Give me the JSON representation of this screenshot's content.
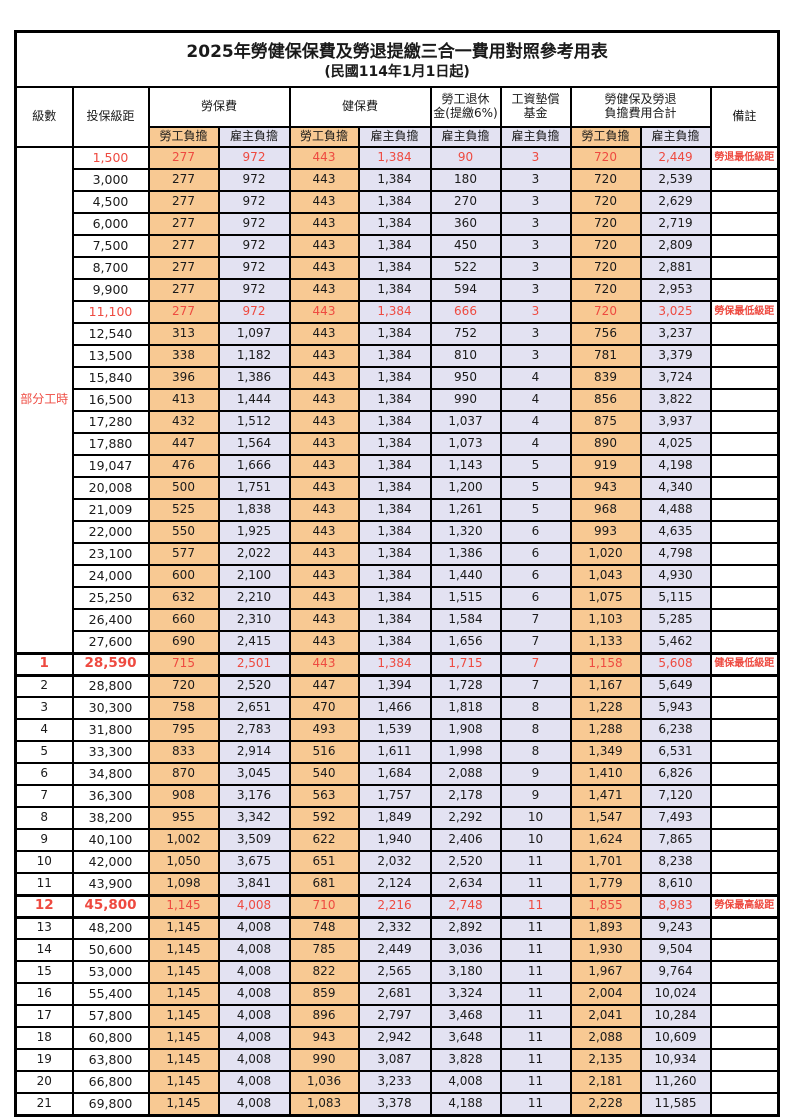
{
  "title": "2025年勞健保保費及勞退提繳三合一費用對照參考用表",
  "subtitle": "(民國114年1月1日起)",
  "colors": {
    "employee_bg": "#F8C993",
    "employer_bg": "#E3E2F2",
    "highlight_red": "#EE4A40",
    "border": "#000000"
  },
  "header": {
    "level": "級數",
    "bracket": "投保級距",
    "labor_insurance": "勞保費",
    "health_insurance": "健保費",
    "pension_line1": "勞工退休",
    "pension_line2": "金(提繳6%)",
    "wage_fund_line1": "工資墊償",
    "wage_fund_line2": "基金",
    "total_line1": "勞健保及勞退",
    "total_line2": "負擔費用合計",
    "remark": "備註",
    "employee": "勞工負擔",
    "employer": "雇主負擔"
  },
  "part_time_label": "部分工時",
  "part_time_rows": 23,
  "rows": [
    {
      "level": "",
      "bracket": "1,500",
      "li_emp": "277",
      "li_er": "972",
      "hi_emp": "443",
      "hi_er": "1,384",
      "pension": "90",
      "fund": "3",
      "tot_emp": "720",
      "tot_er": "2,449",
      "remark": "勞退最低級距",
      "red": true,
      "thick": false
    },
    {
      "level": "",
      "bracket": "3,000",
      "li_emp": "277",
      "li_er": "972",
      "hi_emp": "443",
      "hi_er": "1,384",
      "pension": "180",
      "fund": "3",
      "tot_emp": "720",
      "tot_er": "2,539",
      "remark": "",
      "red": false,
      "thick": false
    },
    {
      "level": "",
      "bracket": "4,500",
      "li_emp": "277",
      "li_er": "972",
      "hi_emp": "443",
      "hi_er": "1,384",
      "pension": "270",
      "fund": "3",
      "tot_emp": "720",
      "tot_er": "2,629",
      "remark": "",
      "red": false,
      "thick": false
    },
    {
      "level": "",
      "bracket": "6,000",
      "li_emp": "277",
      "li_er": "972",
      "hi_emp": "443",
      "hi_er": "1,384",
      "pension": "360",
      "fund": "3",
      "tot_emp": "720",
      "tot_er": "2,719",
      "remark": "",
      "red": false,
      "thick": false
    },
    {
      "level": "",
      "bracket": "7,500",
      "li_emp": "277",
      "li_er": "972",
      "hi_emp": "443",
      "hi_er": "1,384",
      "pension": "450",
      "fund": "3",
      "tot_emp": "720",
      "tot_er": "2,809",
      "remark": "",
      "red": false,
      "thick": false
    },
    {
      "level": "",
      "bracket": "8,700",
      "li_emp": "277",
      "li_er": "972",
      "hi_emp": "443",
      "hi_er": "1,384",
      "pension": "522",
      "fund": "3",
      "tot_emp": "720",
      "tot_er": "2,881",
      "remark": "",
      "red": false,
      "thick": false
    },
    {
      "level": "",
      "bracket": "9,900",
      "li_emp": "277",
      "li_er": "972",
      "hi_emp": "443",
      "hi_er": "1,384",
      "pension": "594",
      "fund": "3",
      "tot_emp": "720",
      "tot_er": "2,953",
      "remark": "",
      "red": false,
      "thick": false
    },
    {
      "level": "",
      "bracket": "11,100",
      "li_emp": "277",
      "li_er": "972",
      "hi_emp": "443",
      "hi_er": "1,384",
      "pension": "666",
      "fund": "3",
      "tot_emp": "720",
      "tot_er": "3,025",
      "remark": "勞保最低級距",
      "red": true,
      "thick": false
    },
    {
      "level": "",
      "bracket": "12,540",
      "li_emp": "313",
      "li_er": "1,097",
      "hi_emp": "443",
      "hi_er": "1,384",
      "pension": "752",
      "fund": "3",
      "tot_emp": "756",
      "tot_er": "3,237",
      "remark": "",
      "red": false,
      "thick": false
    },
    {
      "level": "",
      "bracket": "13,500",
      "li_emp": "338",
      "li_er": "1,182",
      "hi_emp": "443",
      "hi_er": "1,384",
      "pension": "810",
      "fund": "3",
      "tot_emp": "781",
      "tot_er": "3,379",
      "remark": "",
      "red": false,
      "thick": false
    },
    {
      "level": "",
      "bracket": "15,840",
      "li_emp": "396",
      "li_er": "1,386",
      "hi_emp": "443",
      "hi_er": "1,384",
      "pension": "950",
      "fund": "4",
      "tot_emp": "839",
      "tot_er": "3,724",
      "remark": "",
      "red": false,
      "thick": false
    },
    {
      "level": "",
      "bracket": "16,500",
      "li_emp": "413",
      "li_er": "1,444",
      "hi_emp": "443",
      "hi_er": "1,384",
      "pension": "990",
      "fund": "4",
      "tot_emp": "856",
      "tot_er": "3,822",
      "remark": "",
      "red": false,
      "thick": false
    },
    {
      "level": "",
      "bracket": "17,280",
      "li_emp": "432",
      "li_er": "1,512",
      "hi_emp": "443",
      "hi_er": "1,384",
      "pension": "1,037",
      "fund": "4",
      "tot_emp": "875",
      "tot_er": "3,937",
      "remark": "",
      "red": false,
      "thick": false
    },
    {
      "level": "",
      "bracket": "17,880",
      "li_emp": "447",
      "li_er": "1,564",
      "hi_emp": "443",
      "hi_er": "1,384",
      "pension": "1,073",
      "fund": "4",
      "tot_emp": "890",
      "tot_er": "4,025",
      "remark": "",
      "red": false,
      "thick": false
    },
    {
      "level": "",
      "bracket": "19,047",
      "li_emp": "476",
      "li_er": "1,666",
      "hi_emp": "443",
      "hi_er": "1,384",
      "pension": "1,143",
      "fund": "5",
      "tot_emp": "919",
      "tot_er": "4,198",
      "remark": "",
      "red": false,
      "thick": false
    },
    {
      "level": "",
      "bracket": "20,008",
      "li_emp": "500",
      "li_er": "1,751",
      "hi_emp": "443",
      "hi_er": "1,384",
      "pension": "1,200",
      "fund": "5",
      "tot_emp": "943",
      "tot_er": "4,340",
      "remark": "",
      "red": false,
      "thick": false
    },
    {
      "level": "",
      "bracket": "21,009",
      "li_emp": "525",
      "li_er": "1,838",
      "hi_emp": "443",
      "hi_er": "1,384",
      "pension": "1,261",
      "fund": "5",
      "tot_emp": "968",
      "tot_er": "4,488",
      "remark": "",
      "red": false,
      "thick": false
    },
    {
      "level": "",
      "bracket": "22,000",
      "li_emp": "550",
      "li_er": "1,925",
      "hi_emp": "443",
      "hi_er": "1,384",
      "pension": "1,320",
      "fund": "6",
      "tot_emp": "993",
      "tot_er": "4,635",
      "remark": "",
      "red": false,
      "thick": false
    },
    {
      "level": "",
      "bracket": "23,100",
      "li_emp": "577",
      "li_er": "2,022",
      "hi_emp": "443",
      "hi_er": "1,384",
      "pension": "1,386",
      "fund": "6",
      "tot_emp": "1,020",
      "tot_er": "4,798",
      "remark": "",
      "red": false,
      "thick": false
    },
    {
      "level": "",
      "bracket": "24,000",
      "li_emp": "600",
      "li_er": "2,100",
      "hi_emp": "443",
      "hi_er": "1,384",
      "pension": "1,440",
      "fund": "6",
      "tot_emp": "1,043",
      "tot_er": "4,930",
      "remark": "",
      "red": false,
      "thick": false
    },
    {
      "level": "",
      "bracket": "25,250",
      "li_emp": "632",
      "li_er": "2,210",
      "hi_emp": "443",
      "hi_er": "1,384",
      "pension": "1,515",
      "fund": "6",
      "tot_emp": "1,075",
      "tot_er": "5,115",
      "remark": "",
      "red": false,
      "thick": false
    },
    {
      "level": "",
      "bracket": "26,400",
      "li_emp": "660",
      "li_er": "2,310",
      "hi_emp": "443",
      "hi_er": "1,384",
      "pension": "1,584",
      "fund": "7",
      "tot_emp": "1,103",
      "tot_er": "5,285",
      "remark": "",
      "red": false,
      "thick": false
    },
    {
      "level": "",
      "bracket": "27,600",
      "li_emp": "690",
      "li_er": "2,415",
      "hi_emp": "443",
      "hi_er": "1,384",
      "pension": "1,656",
      "fund": "7",
      "tot_emp": "1,133",
      "tot_er": "5,462",
      "remark": "",
      "red": false,
      "thick": false
    },
    {
      "level": "1",
      "bracket": "28,590",
      "li_emp": "715",
      "li_er": "2,501",
      "hi_emp": "443",
      "hi_er": "1,384",
      "pension": "1,715",
      "fund": "7",
      "tot_emp": "1,158",
      "tot_er": "5,608",
      "remark": "健保最低級距",
      "red": true,
      "thick": true
    },
    {
      "level": "2",
      "bracket": "28,800",
      "li_emp": "720",
      "li_er": "2,520",
      "hi_emp": "447",
      "hi_er": "1,394",
      "pension": "1,728",
      "fund": "7",
      "tot_emp": "1,167",
      "tot_er": "5,649",
      "remark": "",
      "red": false,
      "thick": false
    },
    {
      "level": "3",
      "bracket": "30,300",
      "li_emp": "758",
      "li_er": "2,651",
      "hi_emp": "470",
      "hi_er": "1,466",
      "pension": "1,818",
      "fund": "8",
      "tot_emp": "1,228",
      "tot_er": "5,943",
      "remark": "",
      "red": false,
      "thick": false
    },
    {
      "level": "4",
      "bracket": "31,800",
      "li_emp": "795",
      "li_er": "2,783",
      "hi_emp": "493",
      "hi_er": "1,539",
      "pension": "1,908",
      "fund": "8",
      "tot_emp": "1,288",
      "tot_er": "6,238",
      "remark": "",
      "red": false,
      "thick": false
    },
    {
      "level": "5",
      "bracket": "33,300",
      "li_emp": "833",
      "li_er": "2,914",
      "hi_emp": "516",
      "hi_er": "1,611",
      "pension": "1,998",
      "fund": "8",
      "tot_emp": "1,349",
      "tot_er": "6,531",
      "remark": "",
      "red": false,
      "thick": false
    },
    {
      "level": "6",
      "bracket": "34,800",
      "li_emp": "870",
      "li_er": "3,045",
      "hi_emp": "540",
      "hi_er": "1,684",
      "pension": "2,088",
      "fund": "9",
      "tot_emp": "1,410",
      "tot_er": "6,826",
      "remark": "",
      "red": false,
      "thick": false
    },
    {
      "level": "7",
      "bracket": "36,300",
      "li_emp": "908",
      "li_er": "3,176",
      "hi_emp": "563",
      "hi_er": "1,757",
      "pension": "2,178",
      "fund": "9",
      "tot_emp": "1,471",
      "tot_er": "7,120",
      "remark": "",
      "red": false,
      "thick": false
    },
    {
      "level": "8",
      "bracket": "38,200",
      "li_emp": "955",
      "li_er": "3,342",
      "hi_emp": "592",
      "hi_er": "1,849",
      "pension": "2,292",
      "fund": "10",
      "tot_emp": "1,547",
      "tot_er": "7,493",
      "remark": "",
      "red": false,
      "thick": false
    },
    {
      "level": "9",
      "bracket": "40,100",
      "li_emp": "1,002",
      "li_er": "3,509",
      "hi_emp": "622",
      "hi_er": "1,940",
      "pension": "2,406",
      "fund": "10",
      "tot_emp": "1,624",
      "tot_er": "7,865",
      "remark": "",
      "red": false,
      "thick": false
    },
    {
      "level": "10",
      "bracket": "42,000",
      "li_emp": "1,050",
      "li_er": "3,675",
      "hi_emp": "651",
      "hi_er": "2,032",
      "pension": "2,520",
      "fund": "11",
      "tot_emp": "1,701",
      "tot_er": "8,238",
      "remark": "",
      "red": false,
      "thick": false
    },
    {
      "level": "11",
      "bracket": "43,900",
      "li_emp": "1,098",
      "li_er": "3,841",
      "hi_emp": "681",
      "hi_er": "2,124",
      "pension": "2,634",
      "fund": "11",
      "tot_emp": "1,779",
      "tot_er": "8,610",
      "remark": "",
      "red": false,
      "thick": false
    },
    {
      "level": "12",
      "bracket": "45,800",
      "li_emp": "1,145",
      "li_er": "4,008",
      "hi_emp": "710",
      "hi_er": "2,216",
      "pension": "2,748",
      "fund": "11",
      "tot_emp": "1,855",
      "tot_er": "8,983",
      "remark": "勞保最高級距",
      "red": true,
      "thick": true
    },
    {
      "level": "13",
      "bracket": "48,200",
      "li_emp": "1,145",
      "li_er": "4,008",
      "hi_emp": "748",
      "hi_er": "2,332",
      "pension": "2,892",
      "fund": "11",
      "tot_emp": "1,893",
      "tot_er": "9,243",
      "remark": "",
      "red": false,
      "thick": false
    },
    {
      "level": "14",
      "bracket": "50,600",
      "li_emp": "1,145",
      "li_er": "4,008",
      "hi_emp": "785",
      "hi_er": "2,449",
      "pension": "3,036",
      "fund": "11",
      "tot_emp": "1,930",
      "tot_er": "9,504",
      "remark": "",
      "red": false,
      "thick": false
    },
    {
      "level": "15",
      "bracket": "53,000",
      "li_emp": "1,145",
      "li_er": "4,008",
      "hi_emp": "822",
      "hi_er": "2,565",
      "pension": "3,180",
      "fund": "11",
      "tot_emp": "1,967",
      "tot_er": "9,764",
      "remark": "",
      "red": false,
      "thick": false
    },
    {
      "level": "16",
      "bracket": "55,400",
      "li_emp": "1,145",
      "li_er": "4,008",
      "hi_emp": "859",
      "hi_er": "2,681",
      "pension": "3,324",
      "fund": "11",
      "tot_emp": "2,004",
      "tot_er": "10,024",
      "remark": "",
      "red": false,
      "thick": false
    },
    {
      "level": "17",
      "bracket": "57,800",
      "li_emp": "1,145",
      "li_er": "4,008",
      "hi_emp": "896",
      "hi_er": "2,797",
      "pension": "3,468",
      "fund": "11",
      "tot_emp": "2,041",
      "tot_er": "10,284",
      "remark": "",
      "red": false,
      "thick": false
    },
    {
      "level": "18",
      "bracket": "60,800",
      "li_emp": "1,145",
      "li_er": "4,008",
      "hi_emp": "943",
      "hi_er": "2,942",
      "pension": "3,648",
      "fund": "11",
      "tot_emp": "2,088",
      "tot_er": "10,609",
      "remark": "",
      "red": false,
      "thick": false
    },
    {
      "level": "19",
      "bracket": "63,800",
      "li_emp": "1,145",
      "li_er": "4,008",
      "hi_emp": "990",
      "hi_er": "3,087",
      "pension": "3,828",
      "fund": "11",
      "tot_emp": "2,135",
      "tot_er": "10,934",
      "remark": "",
      "red": false,
      "thick": false
    },
    {
      "level": "20",
      "bracket": "66,800",
      "li_emp": "1,145",
      "li_er": "4,008",
      "hi_emp": "1,036",
      "hi_er": "3,233",
      "pension": "4,008",
      "fund": "11",
      "tot_emp": "2,181",
      "tot_er": "11,260",
      "remark": "",
      "red": false,
      "thick": false
    },
    {
      "level": "21",
      "bracket": "69,800",
      "li_emp": "1,145",
      "li_er": "4,008",
      "hi_emp": "1,083",
      "hi_er": "3,378",
      "pension": "4,188",
      "fund": "11",
      "tot_emp": "2,228",
      "tot_er": "11,585",
      "remark": "",
      "red": false,
      "thick": false
    }
  ]
}
